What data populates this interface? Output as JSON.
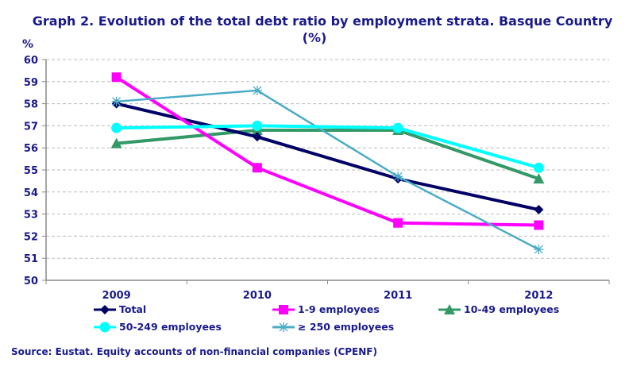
{
  "chart_data": {
    "type": "line",
    "title": "Graph 2. Evolution  of the total debt ratio by employment  strata. Basque Country",
    "title_line2": "(%)",
    "ylabel": "%",
    "xlabel": "",
    "categories": [
      "2009",
      "2010",
      "2011",
      "2012"
    ],
    "ylim": [
      50,
      60
    ],
    "yticks": [
      "50",
      "51",
      "52",
      "53",
      "54",
      "55",
      "56",
      "57",
      "58",
      "59",
      "60"
    ],
    "grid": "horizontal dashed",
    "legend_position": "bottom",
    "series": [
      {
        "name": "Total",
        "values": [
          58.0,
          56.5,
          54.6,
          53.2
        ],
        "color": "#000066",
        "marker": "diamond"
      },
      {
        "name": "1-9 employees",
        "values": [
          59.2,
          55.1,
          52.6,
          52.5
        ],
        "color": "#FF00FF",
        "marker": "square"
      },
      {
        "name": "10-49 employees",
        "values": [
          56.2,
          56.8,
          56.8,
          54.6
        ],
        "color": "#339966",
        "marker": "triangle"
      },
      {
        "name": "50-249 employees",
        "values": [
          56.9,
          57.0,
          56.9,
          55.1
        ],
        "color": "#00FFFF",
        "marker": "circle"
      },
      {
        "name": "≥ 250 employees",
        "values": [
          58.1,
          58.6,
          54.7,
          51.4
        ],
        "color": "#4BACC6",
        "marker": "star"
      }
    ]
  },
  "source": "Source: Eustat. Equity accounts of non-financial companies (CPENF)"
}
